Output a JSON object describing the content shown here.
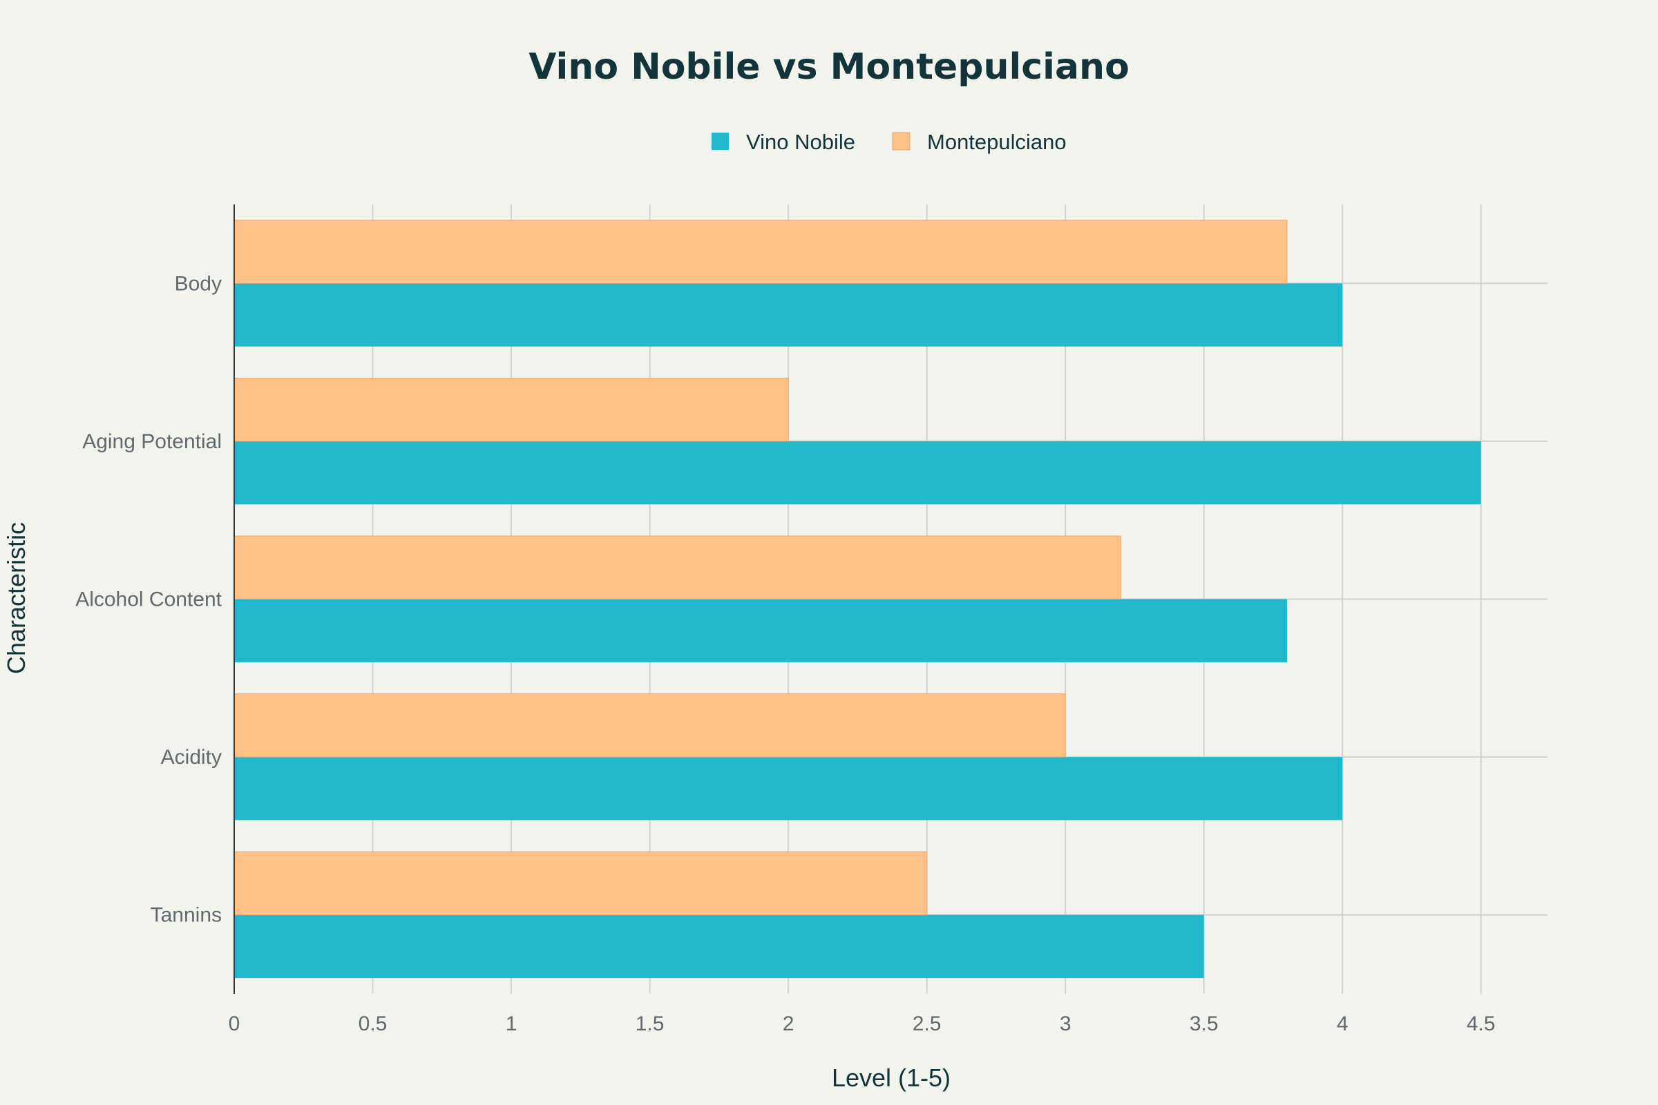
{
  "chart_data": {
    "type": "bar",
    "orientation": "horizontal",
    "title": "Vino Nobile vs Montepulciano",
    "xlabel": "Level (1-5)",
    "ylabel": "Characteristic",
    "categories": [
      "Tannins",
      "Acidity",
      "Alcohol Content",
      "Aging Potential",
      "Body"
    ],
    "series": [
      {
        "name": "Vino Nobile",
        "color": "#21b8cc",
        "values": [
          3.5,
          4.0,
          3.8,
          4.5,
          4.0
        ]
      },
      {
        "name": "Montepulciano",
        "color": "#ffc186",
        "values": [
          2.5,
          3.0,
          3.2,
          2.0,
          3.8
        ]
      }
    ],
    "xlim": [
      0,
      4.74
    ],
    "xticks": [
      0,
      0.5,
      1,
      1.5,
      2,
      2.5,
      3,
      3.5,
      4,
      4.5
    ],
    "xtick_labels": [
      "0",
      "0.5",
      "1",
      "1.5",
      "2",
      "2.5",
      "3",
      "3.5",
      "4",
      "4.5"
    ],
    "grid": true,
    "legend_position": "top-center"
  },
  "colors": {
    "background": "#f3f3ee",
    "title": "#13343b",
    "tick": "#5f6a6e",
    "grid": "#d2d3d0"
  }
}
